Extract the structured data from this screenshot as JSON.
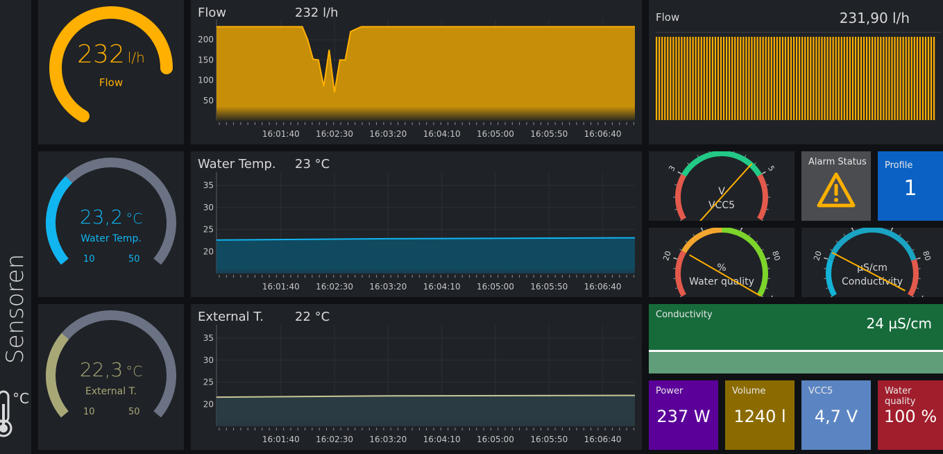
{
  "sidebar": {
    "title": "Sensoren",
    "unit": "°C"
  },
  "flow_gauge": {
    "value": "232",
    "unit": "l/h",
    "label": "Flow",
    "color": "#ffb000",
    "fraction": 0.8
  },
  "water_gauge": {
    "value": "23,2",
    "unit": "°C",
    "label": "Water Temp.",
    "min": "10",
    "max": "50",
    "color": "#11b5f0",
    "fraction": 0.33
  },
  "external_gauge": {
    "value": "22,3",
    "unit": "°C",
    "label": "External T.",
    "min": "10",
    "max": "50",
    "color": "#a8a876",
    "fraction": 0.31
  },
  "flow_chart": {
    "title": "Flow",
    "value": "232 l/h",
    "color": "#ffb000",
    "chart_data": {
      "type": "area",
      "x": [
        "16:00:40",
        "16:01:00",
        "16:01:20",
        "16:01:40",
        "16:02:00",
        "16:02:05",
        "16:02:10",
        "16:02:15",
        "16:02:20",
        "16:02:25",
        "16:02:30",
        "16:02:35",
        "16:02:40",
        "16:02:45",
        "16:02:55",
        "16:03:20",
        "16:04:10",
        "16:05:00",
        "16:05:50",
        "16:06:40",
        "16:07:10"
      ],
      "values": [
        232,
        232,
        232,
        232,
        232,
        200,
        152,
        150,
        85,
        175,
        70,
        150,
        150,
        220,
        232,
        232,
        232,
        232,
        232,
        232,
        232
      ],
      "yticks": [
        "50",
        "100",
        "150",
        "200"
      ],
      "xticks": [
        "16:01:40",
        "16:02:30",
        "16:03:20",
        "16:04:10",
        "16:05:00",
        "16:05:50",
        "16:06:40"
      ],
      "ylim": [
        0,
        250
      ]
    }
  },
  "water_chart": {
    "title": "Water Temp.",
    "value": "23 °C",
    "color": "#11b5f0",
    "chart_data": {
      "type": "area",
      "x": [
        "16:00:40",
        "16:03:20",
        "16:07:10"
      ],
      "values": [
        22.6,
        22.9,
        23.1
      ],
      "yticks": [
        "20",
        "25",
        "30",
        "35"
      ],
      "xticks": [
        "16:01:40",
        "16:02:30",
        "16:03:20",
        "16:04:10",
        "16:05:00",
        "16:05:50",
        "16:06:40"
      ],
      "ylim": [
        15,
        38
      ]
    }
  },
  "external_chart": {
    "title": "External T.",
    "value": "22 °C",
    "color": "#c8c896",
    "chart_data": {
      "type": "area",
      "x": [
        "16:00:40",
        "16:03:20",
        "16:07:10"
      ],
      "values": [
        21.6,
        21.9,
        22.0
      ],
      "yticks": [
        "20",
        "25",
        "30",
        "35"
      ],
      "xticks": [
        "16:01:40",
        "16:02:30",
        "16:03:20",
        "16:04:10",
        "16:05:00",
        "16:05:50",
        "16:06:40"
      ],
      "ylim": [
        15,
        38
      ]
    }
  },
  "flow_stat": {
    "title": "Flow",
    "value": "231,90 l/h",
    "color": "#ffb000",
    "bars": 100
  },
  "vcc5_gauge": {
    "unit": "V",
    "label": "VCC5",
    "ticks": [
      "2",
      "3",
      "4",
      "5",
      "6"
    ],
    "value": 4.7,
    "min": 2,
    "max": 6
  },
  "alarm": {
    "title": "Alarm Status"
  },
  "profile": {
    "title": "Profile",
    "value": "1"
  },
  "wq_gauge": {
    "unit": "%",
    "label": "Water quality",
    "ticks": [
      "0",
      "20",
      "40",
      "60",
      "80",
      "100"
    ],
    "value": 100,
    "min": 0,
    "max": 100
  },
  "cond_gauge": {
    "unit": "µS/cm",
    "label": "Conductivity",
    "ticks": [
      "0",
      "20",
      "40",
      "60",
      "80",
      "100"
    ],
    "value": 24,
    "min": 0,
    "max": 100
  },
  "cond_stat": {
    "title": "Conductivity",
    "value": "24 µS/cm"
  },
  "tiles": [
    {
      "title": "Power",
      "value": "237 W",
      "color": "#5b0099"
    },
    {
      "title": "Volume",
      "value": "1240 l",
      "color": "#8b6b00"
    },
    {
      "title": "VCC5",
      "value": "4,7 V",
      "color": "#5b85c2"
    },
    {
      "title": "Water quality",
      "value": "100 %",
      "color": "#a11e2c"
    }
  ]
}
